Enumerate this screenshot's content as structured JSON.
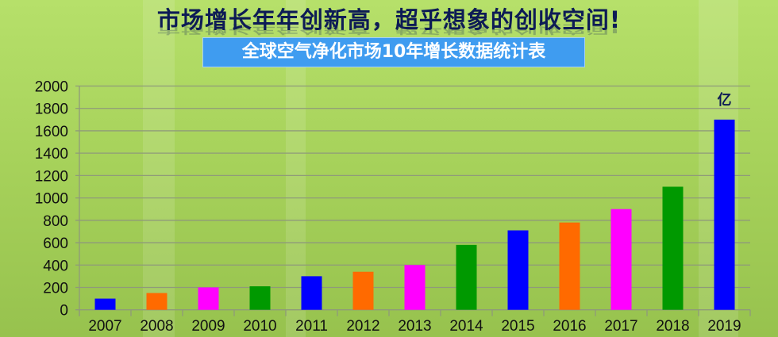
{
  "headline": "市场增长年年创新高，超乎想象的创收空间!",
  "chart_data": {
    "type": "bar",
    "title": "全球空气净化市场10年增长数据统计表",
    "unit_label": "亿",
    "categories": [
      "2007",
      "2008",
      "2009",
      "2010",
      "2011",
      "2012",
      "2013",
      "2014",
      "2015",
      "2016",
      "2017",
      "2018",
      "2019"
    ],
    "values": [
      100,
      150,
      200,
      210,
      300,
      340,
      400,
      580,
      710,
      780,
      900,
      1100,
      1700
    ],
    "colors": [
      "#0000ff",
      "#ff6a00",
      "#ff00ff",
      "#009900",
      "#0000ff",
      "#ff6a00",
      "#ff00ff",
      "#009900",
      "#0000ff",
      "#ff6a00",
      "#ff00ff",
      "#009900",
      "#0000ff"
    ],
    "ylim": [
      0,
      2000
    ],
    "yticks": [
      "0",
      "200",
      "400",
      "600",
      "800",
      "1000",
      "1200",
      "1400",
      "1600",
      "1800",
      "2000"
    ],
    "grid": true,
    "legend": "none"
  }
}
